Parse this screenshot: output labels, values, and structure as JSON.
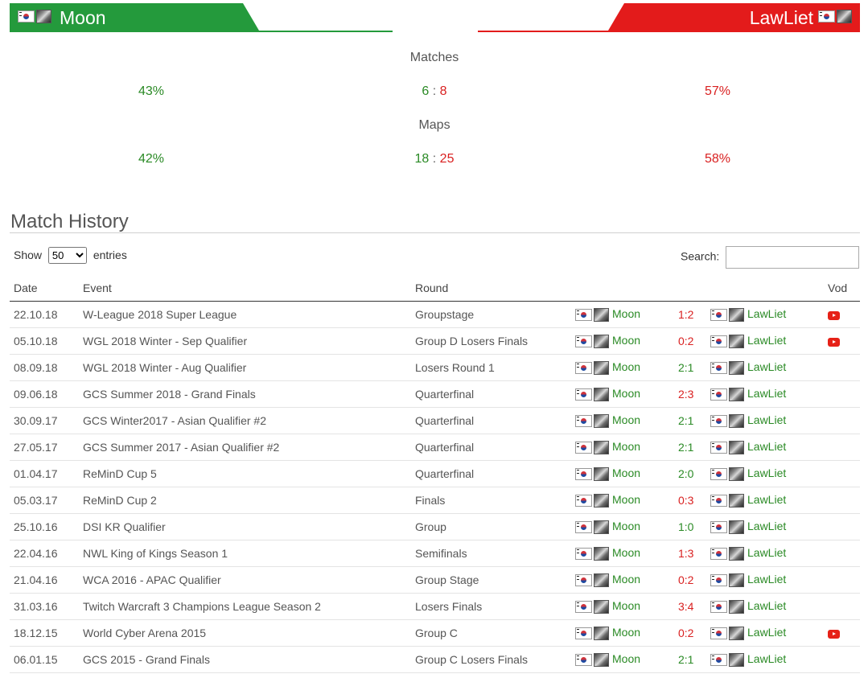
{
  "player_left": {
    "name": "Moon",
    "color": "#249a3c"
  },
  "player_right": {
    "name": "LawLiet",
    "color": "#e31b1b"
  },
  "stats": {
    "matches_label": "Matches",
    "matches_left_pct": "43%",
    "matches_left": "6",
    "matches_sep": ":",
    "matches_right": "8",
    "matches_right_pct": "57%",
    "maps_label": "Maps",
    "maps_left_pct": "42%",
    "maps_left": "18",
    "maps_sep": ":",
    "maps_right": "25",
    "maps_right_pct": "58%"
  },
  "history_title": "Match History",
  "controls": {
    "show_label": "Show",
    "entries_value": "50",
    "entries_label": "entries",
    "search_label": "Search:",
    "search_value": ""
  },
  "columns": {
    "date": "Date",
    "event": "Event",
    "round": "Round",
    "vod": "Vod"
  },
  "icons": {
    "flag": "south-korea-flag-icon",
    "race": "undead-race-icon",
    "vod": "youtube-icon"
  },
  "rows": [
    {
      "date": "22.10.18",
      "event": "W-League 2018 Super League",
      "round": "Groupstage",
      "score": "1:2",
      "win": "right",
      "vod": true
    },
    {
      "date": "05.10.18",
      "event": "WGL 2018 Winter - Sep Qualifier",
      "round": "Group D Losers Finals",
      "score": "0:2",
      "win": "right",
      "vod": true
    },
    {
      "date": "08.09.18",
      "event": "WGL 2018 Winter - Aug Qualifier",
      "round": "Losers Round 1",
      "score": "2:1",
      "win": "left",
      "vod": false
    },
    {
      "date": "09.06.18",
      "event": "GCS Summer 2018 - Grand Finals",
      "round": "Quarterfinal",
      "score": "2:3",
      "win": "right",
      "vod": false
    },
    {
      "date": "30.09.17",
      "event": "GCS Winter2017 - Asian Qualifier #2",
      "round": "Quarterfinal",
      "score": "2:1",
      "win": "left",
      "vod": false
    },
    {
      "date": "27.05.17",
      "event": "GCS Summer 2017 - Asian Qualifier #2",
      "round": "Quarterfinal",
      "score": "2:1",
      "win": "left",
      "vod": false
    },
    {
      "date": "01.04.17",
      "event": "ReMinD Cup 5",
      "round": "Quarterfinal",
      "score": "2:0",
      "win": "left",
      "vod": false
    },
    {
      "date": "05.03.17",
      "event": "ReMinD Cup 2",
      "round": "Finals",
      "score": "0:3",
      "win": "right",
      "vod": false
    },
    {
      "date": "25.10.16",
      "event": "DSI KR Qualifier",
      "round": "Group",
      "score": "1:0",
      "win": "left",
      "vod": false
    },
    {
      "date": "22.04.16",
      "event": "NWL King of Kings Season 1",
      "round": "Semifinals",
      "score": "1:3",
      "win": "right",
      "vod": false
    },
    {
      "date": "21.04.16",
      "event": "WCA 2016 - APAC Qualifier",
      "round": "Group Stage",
      "score": "0:2",
      "win": "right",
      "vod": false
    },
    {
      "date": "31.03.16",
      "event": "Twitch Warcraft 3 Champions League Season 2",
      "round": "Losers Finals",
      "score": "3:4",
      "win": "right",
      "vod": false
    },
    {
      "date": "18.12.15",
      "event": "World Cyber Arena 2015",
      "round": "Group C",
      "score": "0:2",
      "win": "right",
      "vod": true
    },
    {
      "date": "06.01.15",
      "event": "GCS 2015 - Grand Finals",
      "round": "Group C Losers Finals",
      "score": "2:1",
      "win": "left",
      "vod": false
    }
  ]
}
